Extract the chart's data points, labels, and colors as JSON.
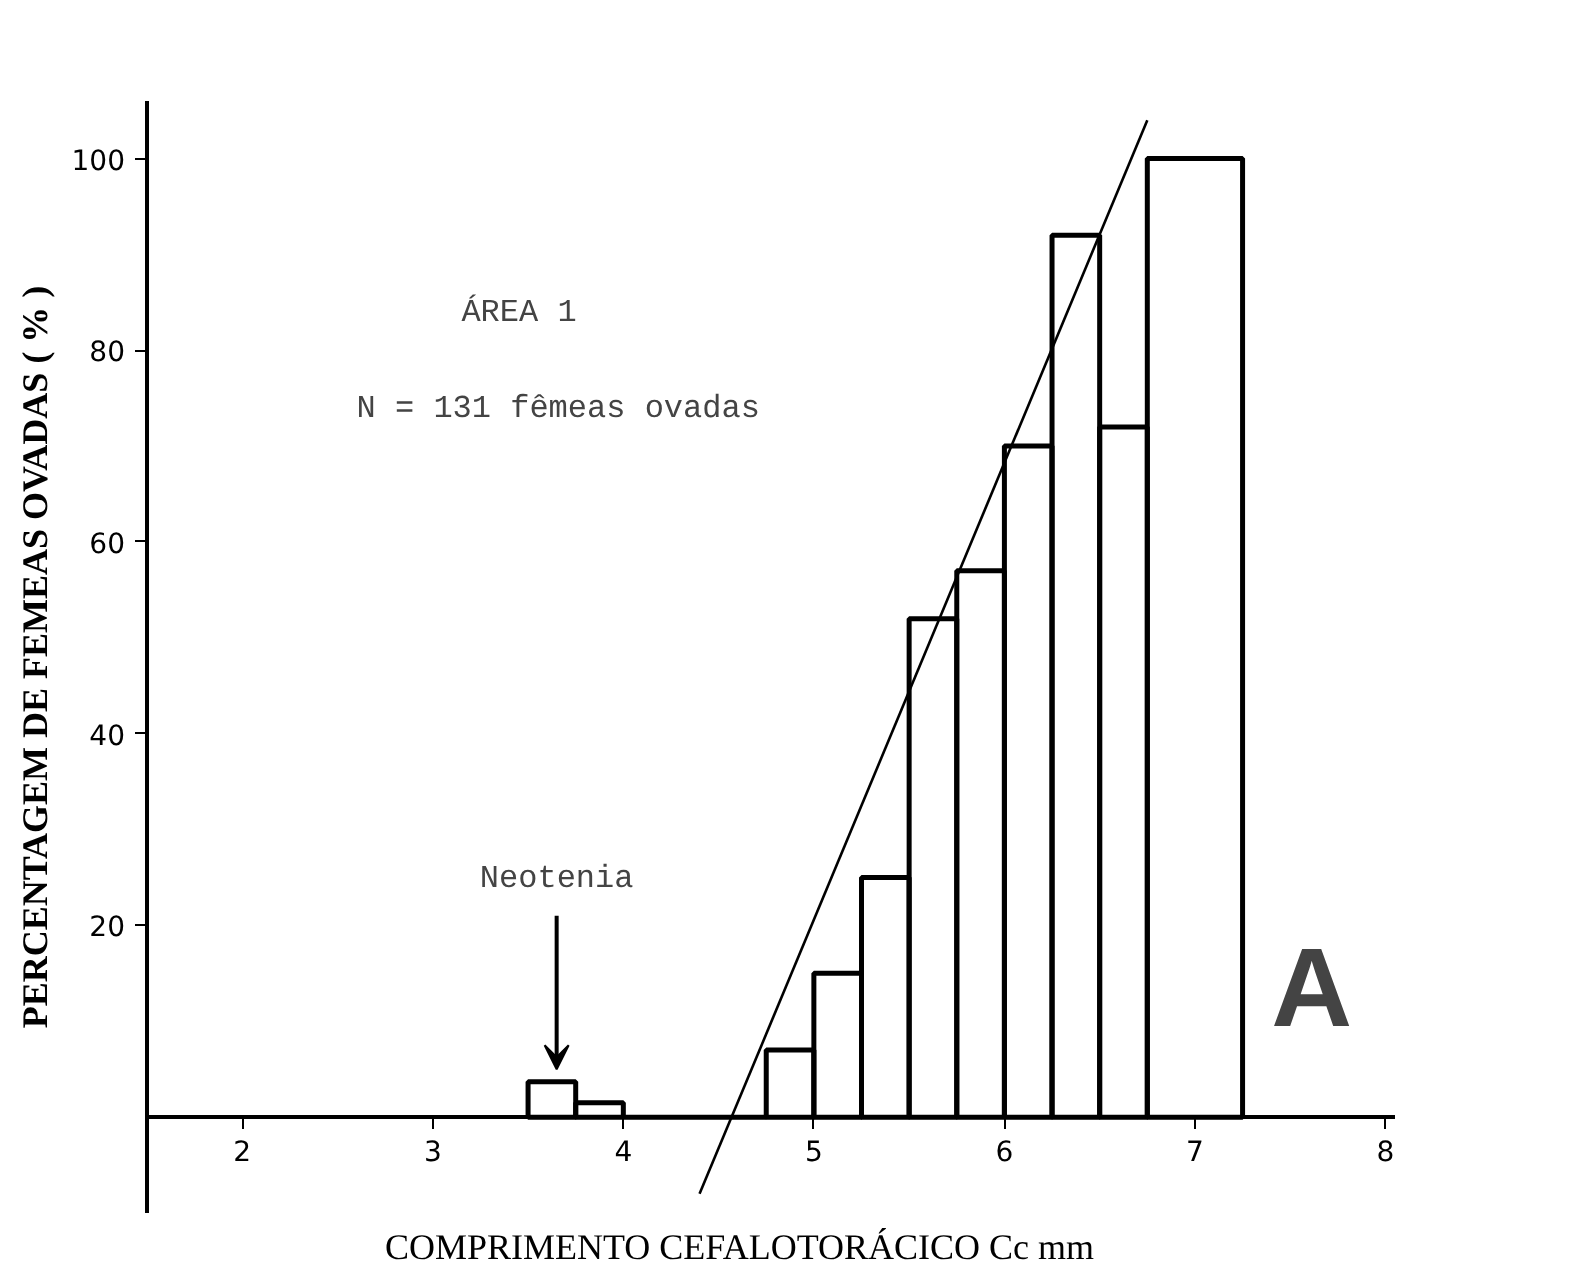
{
  "chart_data": {
    "type": "histogram",
    "xlabel": "COMPRIMENTO      CEFALOTORÁCICO   Cc mm",
    "ylabel": "PERCENTAGEM DE FEMEAS OVADAS ( % )",
    "bins": [
      3.5,
      3.75,
      4.0,
      4.75,
      5.0,
      5.25,
      5.5,
      5.75,
      6.0,
      6.25,
      6.5,
      6.75,
      7.25
    ],
    "values": [
      3.7,
      1.5,
      0,
      7,
      15,
      25,
      52,
      57,
      70,
      92,
      72,
      100
    ],
    "color": "#000000",
    "series": [
      {
        "type": "line",
        "x": [
          4.4,
          6.75
        ],
        "values": [
          -8,
          104
        ],
        "color": "#000000"
      }
    ],
    "xlim": [
      1.5,
      8.05
    ],
    "ylim": [
      -10,
      106
    ],
    "xticks": [
      2,
      3,
      4,
      5,
      6,
      7,
      8
    ],
    "yticks": [
      20,
      40,
      60,
      80,
      100
    ],
    "grid": false,
    "annotations": [
      "ÁREA 1",
      "N = 131 fêmeas ovadas",
      {
        "text": "Neotenia",
        "x": 3.65,
        "y": 4
      },
      "A"
    ]
  }
}
